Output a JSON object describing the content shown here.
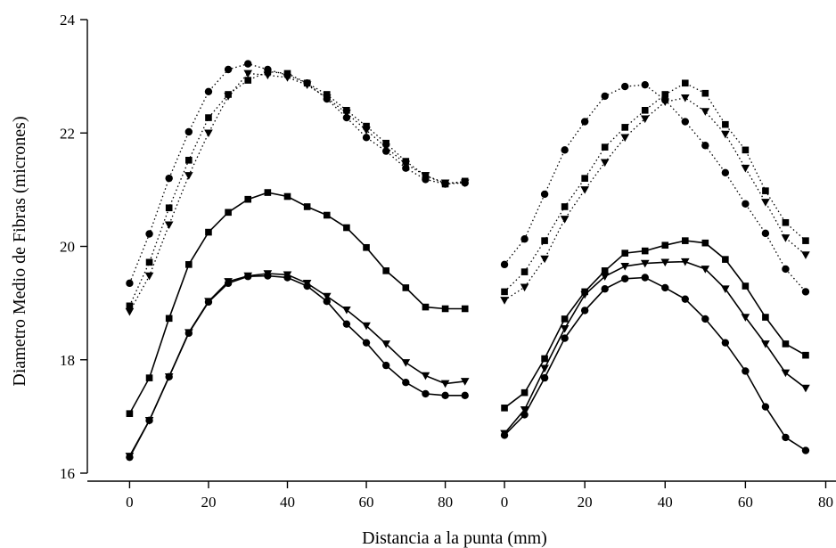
{
  "chart_data": {
    "type": "line",
    "xlabel": "Distancia a la punta (mm)",
    "ylabel": "Diametro Medio de Fibras (micrones)",
    "ylim": [
      16,
      24
    ],
    "yticks": [
      16,
      18,
      20,
      22,
      24
    ],
    "grid": false,
    "panels": [
      {
        "xlim": [
          -8,
          88
        ],
        "xticks": [
          0,
          20,
          40,
          60,
          80
        ],
        "series": [
          {
            "marker": "circle",
            "style": "dotted",
            "x": [
              0,
              5,
              10,
              15,
              20,
              25,
              30,
              35,
              40,
              45,
              50,
              55,
              60,
              65,
              70,
              75,
              80,
              85
            ],
            "y": [
              19.35,
              20.22,
              21.2,
              22.02,
              22.73,
              23.12,
              23.22,
              23.12,
              23.02,
              22.88,
              22.6,
              22.27,
              21.92,
              21.68,
              21.38,
              21.18,
              21.1,
              21.12
            ]
          },
          {
            "marker": "square",
            "style": "dotted",
            "x": [
              0,
              5,
              10,
              15,
              20,
              25,
              30,
              35,
              40,
              45,
              50,
              55,
              60,
              65,
              70,
              75,
              80,
              85
            ],
            "y": [
              18.95,
              19.72,
              20.68,
              21.52,
              22.27,
              22.68,
              22.93,
              23.08,
              23.05,
              22.88,
              22.68,
              22.4,
              22.12,
              21.82,
              21.5,
              21.25,
              21.1,
              21.15
            ]
          },
          {
            "marker": "triangle-down",
            "style": "dotted",
            "x": [
              0,
              5,
              10,
              15,
              20,
              25,
              30,
              35,
              40,
              45,
              50,
              55,
              60,
              65,
              70,
              75,
              80,
              85
            ],
            "y": [
              18.85,
              19.48,
              20.38,
              21.25,
              22.0,
              22.65,
              23.05,
              23.02,
              22.98,
              22.85,
              22.62,
              22.35,
              22.05,
              21.75,
              21.45,
              21.25,
              21.12,
              21.12
            ]
          },
          {
            "marker": "square",
            "style": "solid",
            "x": [
              0,
              5,
              10,
              15,
              20,
              25,
              30,
              35,
              40,
              45,
              50,
              55,
              60,
              65,
              70,
              75,
              80,
              85
            ],
            "y": [
              17.05,
              17.68,
              18.73,
              19.68,
              20.25,
              20.6,
              20.83,
              20.95,
              20.88,
              20.7,
              20.55,
              20.33,
              19.98,
              19.57,
              19.27,
              18.93,
              18.9,
              18.9
            ]
          },
          {
            "marker": "triangle-down",
            "style": "solid",
            "x": [
              0,
              5,
              10,
              15,
              20,
              25,
              30,
              35,
              40,
              45,
              50,
              55,
              60,
              65,
              70,
              75,
              80,
              85
            ],
            "y": [
              16.3,
              16.93,
              17.7,
              18.48,
              19.03,
              19.38,
              19.48,
              19.52,
              19.5,
              19.35,
              19.12,
              18.88,
              18.6,
              18.28,
              17.95,
              17.72,
              17.58,
              17.62
            ]
          },
          {
            "marker": "circle",
            "style": "solid",
            "x": [
              0,
              5,
              10,
              15,
              20,
              25,
              30,
              35,
              40,
              45,
              50,
              55,
              60,
              65,
              70,
              75,
              80,
              85
            ],
            "y": [
              16.28,
              16.93,
              17.7,
              18.47,
              19.02,
              19.35,
              19.47,
              19.48,
              19.45,
              19.3,
              19.03,
              18.63,
              18.3,
              17.9,
              17.6,
              17.4,
              17.37,
              17.37
            ]
          }
        ]
      },
      {
        "xlim": [
          -8,
          83
        ],
        "xticks": [
          0,
          20,
          40,
          60,
          80
        ],
        "series": [
          {
            "marker": "circle",
            "style": "dotted",
            "x": [
              0,
              5,
              10,
              15,
              20,
              25,
              30,
              35,
              40,
              45,
              50,
              55,
              60,
              65,
              70,
              75
            ],
            "y": [
              19.68,
              20.13,
              20.92,
              21.7,
              22.2,
              22.65,
              22.82,
              22.85,
              22.58,
              22.2,
              21.78,
              21.3,
              20.75,
              20.23,
              19.6,
              19.2
            ]
          },
          {
            "marker": "square",
            "style": "dotted",
            "x": [
              0,
              5,
              10,
              15,
              20,
              25,
              30,
              35,
              40,
              45,
              50,
              55,
              60,
              65,
              70,
              75
            ],
            "y": [
              19.2,
              19.55,
              20.1,
              20.7,
              21.2,
              21.75,
              22.1,
              22.4,
              22.68,
              22.88,
              22.7,
              22.15,
              21.7,
              20.98,
              20.42,
              20.1
            ]
          },
          {
            "marker": "triangle-down",
            "style": "dotted",
            "x": [
              0,
              5,
              10,
              15,
              20,
              25,
              30,
              35,
              40,
              45,
              50,
              55,
              60,
              65,
              70,
              75
            ],
            "y": [
              19.05,
              19.28,
              19.78,
              20.48,
              21.0,
              21.48,
              21.92,
              22.25,
              22.55,
              22.62,
              22.38,
              21.98,
              21.38,
              20.78,
              20.15,
              19.85
            ]
          },
          {
            "marker": "square",
            "style": "solid",
            "x": [
              0,
              5,
              10,
              15,
              20,
              25,
              30,
              35,
              40,
              45,
              50,
              55,
              60,
              65,
              70,
              75
            ],
            "y": [
              17.15,
              17.42,
              18.02,
              18.72,
              19.2,
              19.57,
              19.88,
              19.92,
              20.02,
              20.1,
              20.06,
              19.77,
              19.3,
              18.75,
              18.28,
              18.08
            ]
          },
          {
            "marker": "triangle-down",
            "style": "solid",
            "x": [
              0,
              5,
              10,
              15,
              20,
              25,
              30,
              35,
              40,
              45,
              50,
              55,
              60,
              65,
              70,
              75
            ],
            "y": [
              16.7,
              17.12,
              17.85,
              18.55,
              19.15,
              19.47,
              19.65,
              19.7,
              19.72,
              19.73,
              19.6,
              19.25,
              18.75,
              18.28,
              17.77,
              17.5
            ]
          },
          {
            "marker": "circle",
            "style": "solid",
            "x": [
              0,
              5,
              10,
              15,
              20,
              25,
              30,
              35,
              40,
              45,
              50,
              55,
              60,
              65,
              70,
              75
            ],
            "y": [
              16.67,
              17.03,
              17.68,
              18.38,
              18.87,
              19.25,
              19.43,
              19.45,
              19.27,
              19.07,
              18.72,
              18.3,
              17.8,
              17.17,
              16.63,
              16.4
            ]
          }
        ]
      }
    ]
  }
}
